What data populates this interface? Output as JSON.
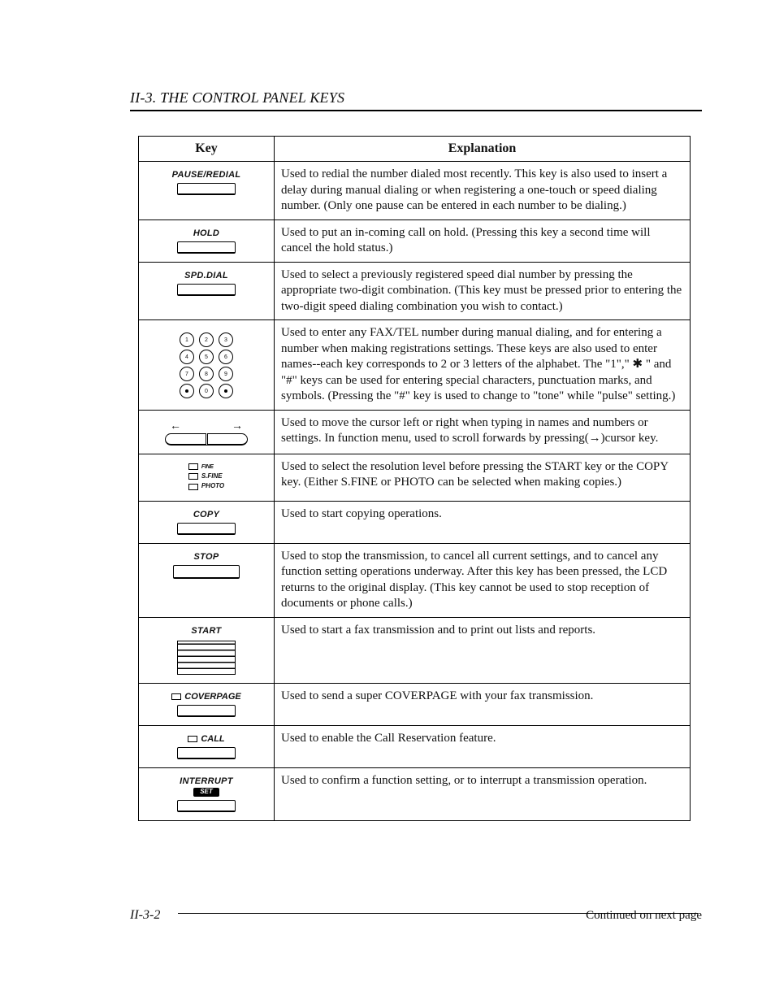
{
  "section_title": "II-3. THE CONTROL PANEL KEYS",
  "headers": {
    "key": "Key",
    "explanation": "Explanation"
  },
  "rows": [
    {
      "label": "PAUSE/REDIAL",
      "explanation": "Used to redial the number dialed most recently. This key is also used to insert a delay during manual dialing or when registering a one-touch or speed dialing number. (Only one pause can be entered in each number to be dialing.)"
    },
    {
      "label": "HOLD",
      "explanation": "Used to put an in-coming call on hold. (Pressing this key a second time will cancel the hold status.)"
    },
    {
      "label": "SPD.DIAL",
      "explanation": "Used to select a previously registered speed dial number by pressing the appropriate two-digit combination. (This key must be pressed prior to entering the two-digit speed dialing combination you wish to contact.)"
    },
    {
      "keypad": [
        [
          "1",
          "2",
          "3"
        ],
        [
          "4",
          "5",
          "6"
        ],
        [
          "7",
          "8",
          "9"
        ],
        [
          "*",
          "0",
          "#"
        ]
      ],
      "explanation": "Used to enter any FAX/TEL number during manual dialing, and for entering a number when making registrations settings. These keys are also used to enter names--each key corresponds to 2 or 3 letters of the alphabet. The \"1\",\" ✱ \" and \"#\" keys can be used for entering special characters, punctuation marks, and symbols. (Pressing the \"#\" key is used to change to \"tone\" while \"pulse\" setting.)"
    },
    {
      "arrows": {
        "left": "←",
        "right": "→"
      },
      "explanation": "Used to move the cursor left or right when typing in names and numbers or settings. In function menu, used to scroll forwards by pressing(→)cursor key."
    },
    {
      "res": [
        "FINE",
        "S.FINE",
        "PHOTO"
      ],
      "explanation": "Used to select the resolution level before pressing the START key or the COPY key. (Either S.FINE or PHOTO can be selected when making copies.)"
    },
    {
      "label": "COPY",
      "explanation": "Used to start copying operations."
    },
    {
      "label": "STOP",
      "explanation": "Used to stop the transmission, to cancel all current settings, and to cancel any function setting operations underway. After this key has been pressed, the LCD returns to the original display. (This key cannot be used to stop reception of documents or phone calls.)"
    },
    {
      "label": "START",
      "start_block": true,
      "explanation": "Used to start a fax transmission and to print out lists and reports."
    },
    {
      "label": "COVERPAGE",
      "led": true,
      "explanation": "Used to send a super COVERPAGE with your fax transmission."
    },
    {
      "label": "CALL",
      "led": true,
      "explanation": "Used to enable the Call Reservation feature."
    },
    {
      "label": "INTERRUPT",
      "chip": "SET",
      "explanation": "Used to confirm a function setting, or to interrupt a transmission operation."
    }
  ],
  "footer": "Continued on next page",
  "page_number": "II-3-2"
}
